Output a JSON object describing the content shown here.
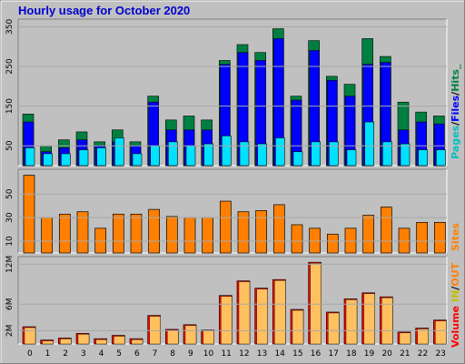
{
  "title": "Hourly usage for October 2020",
  "colors": {
    "background": "#c0c0c0",
    "hits": "#008040",
    "files": "#0000ff",
    "pages": "#00e0ff",
    "sites": "#ff8000",
    "volume": "#ff0000",
    "volume_in": "#ffc060",
    "legend_pages": "#00c0c0",
    "legend_files": "#0000ff",
    "legend_hits": "#008040",
    "legend_sites": "#ff8000",
    "legend_volume": "#ff0000",
    "legend_in": "#c0c000",
    "legend_out": "#ff8000",
    "legend_sep": "#000000"
  },
  "legends": {
    "top": {
      "pages": "Pages",
      "sep1": "/",
      "files": "Files",
      "sep2": "/",
      "hits": "Hits_"
    },
    "middle": {
      "sites": "Sites"
    },
    "bottom": {
      "volume": "Volume",
      "in": "IN",
      "sep": "/",
      "out": "OUT"
    }
  },
  "chart_data": [
    {
      "type": "bar",
      "name": "hits-files-pages",
      "categories": [
        "0",
        "1",
        "2",
        "3",
        "4",
        "5",
        "6",
        "7",
        "8",
        "9",
        "10",
        "11",
        "12",
        "13",
        "14",
        "15",
        "16",
        "17",
        "18",
        "19",
        "20",
        "21",
        "22",
        "23"
      ],
      "series": [
        {
          "name": "Hits",
          "values": [
            130,
            50,
            65,
            85,
            60,
            90,
            60,
            175,
            115,
            125,
            115,
            265,
            305,
            285,
            345,
            175,
            315,
            225,
            205,
            320,
            275,
            160,
            135,
            125
          ]
        },
        {
          "name": "Files",
          "values": [
            110,
            35,
            45,
            65,
            50,
            60,
            50,
            160,
            90,
            90,
            90,
            255,
            285,
            265,
            320,
            165,
            290,
            215,
            175,
            255,
            260,
            90,
            110,
            105
          ]
        },
        {
          "name": "Pages",
          "values": [
            45,
            30,
            30,
            40,
            45,
            70,
            30,
            50,
            60,
            50,
            55,
            75,
            60,
            55,
            70,
            35,
            60,
            60,
            40,
            110,
            60,
            55,
            40,
            40
          ]
        }
      ],
      "yticks": [
        50,
        150,
        250,
        350
      ],
      "ylim": [
        0,
        360
      ]
    },
    {
      "type": "bar",
      "name": "sites",
      "categories": [
        "0",
        "1",
        "2",
        "3",
        "4",
        "5",
        "6",
        "7",
        "8",
        "9",
        "10",
        "11",
        "12",
        "13",
        "14",
        "15",
        "16",
        "17",
        "18",
        "19",
        "20",
        "21",
        "22",
        "23"
      ],
      "series": [
        {
          "name": "Sites",
          "values": [
            66,
            30,
            33,
            35,
            21,
            33,
            33,
            37,
            31,
            30,
            30,
            44,
            35,
            36,
            41,
            24,
            21,
            16,
            21,
            32,
            39,
            21,
            26,
            26
          ]
        }
      ],
      "yticks": [
        10,
        30,
        50
      ],
      "ylim": [
        0,
        68
      ]
    },
    {
      "type": "bar",
      "name": "volume",
      "categories": [
        "0",
        "1",
        "2",
        "3",
        "4",
        "5",
        "6",
        "7",
        "8",
        "9",
        "10",
        "11",
        "12",
        "13",
        "14",
        "15",
        "16",
        "17",
        "18",
        "19",
        "20",
        "21",
        "22",
        "23"
      ],
      "series": [
        {
          "name": "Volume",
          "values": [
            2.6,
            0.6,
            0.9,
            1.6,
            0.8,
            1.3,
            0.8,
            4.3,
            2.2,
            2.9,
            2.1,
            7.3,
            9.5,
            8.4,
            9.7,
            5.2,
            12.3,
            4.8,
            6.8,
            7.7,
            7.1,
            1.8,
            2.4,
            3.6
          ]
        }
      ],
      "yticks": [
        2,
        6,
        12
      ],
      "ytick_labels": [
        "2M",
        "6M",
        "12M"
      ],
      "ylim": [
        0,
        12.6
      ]
    }
  ]
}
